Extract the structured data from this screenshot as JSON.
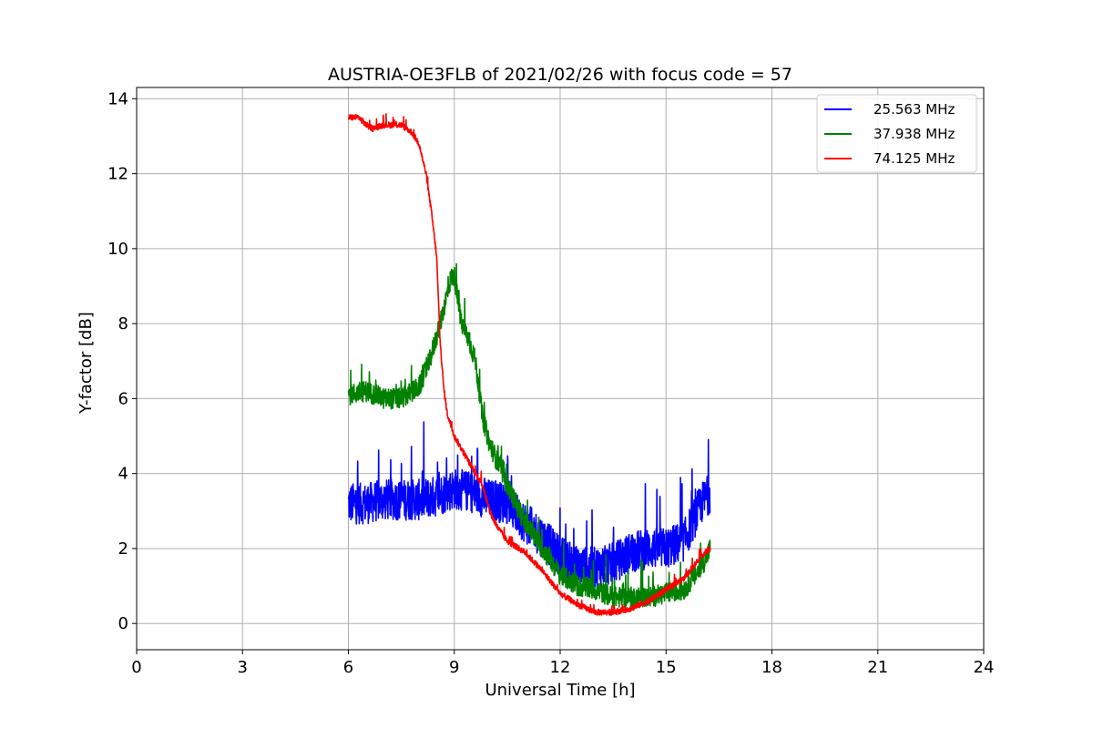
{
  "chart_data": {
    "type": "line",
    "title": "AUSTRIA-OE3FLB of 2021/02/26 with focus code = 57",
    "xlabel": "Universal Time [h]",
    "ylabel": "Y-factor [dB]",
    "xlim": [
      0,
      24
    ],
    "ylim": [
      -0.7,
      14.3
    ],
    "xticks": [
      0,
      3,
      6,
      9,
      12,
      15,
      18,
      21,
      24
    ],
    "yticks": [
      0,
      2,
      4,
      6,
      8,
      10,
      12,
      14
    ],
    "grid": true,
    "legend_position": "top-right",
    "series": [
      {
        "name": "25.563 MHz",
        "color": "#0000ff",
        "x": [
          6.0,
          6.5,
          7.0,
          7.5,
          8.0,
          8.5,
          9.0,
          9.5,
          10.0,
          10.5,
          11.0,
          11.5,
          12.0,
          12.5,
          13.0,
          13.5,
          14.0,
          14.5,
          15.0,
          15.5,
          16.0,
          16.25
        ],
        "y": [
          3.2,
          3.2,
          3.3,
          3.3,
          3.3,
          3.4,
          3.6,
          3.5,
          3.3,
          3.2,
          2.7,
          2.3,
          1.8,
          1.5,
          1.5,
          1.6,
          1.9,
          2.0,
          2.0,
          2.2,
          3.2,
          3.5
        ],
        "noise": 0.55
      },
      {
        "name": "37.938 MHz",
        "color": "#008000",
        "x": [
          6.0,
          6.5,
          7.0,
          7.5,
          8.0,
          8.3,
          8.6,
          8.9,
          9.0,
          9.2,
          9.4,
          9.6,
          9.8,
          10.0,
          10.5,
          11.0,
          11.5,
          12.0,
          12.5,
          13.0,
          13.5,
          14.0,
          14.5,
          15.0,
          15.5,
          16.0,
          16.25
        ],
        "y": [
          6.1,
          6.2,
          6.0,
          6.0,
          6.3,
          7.0,
          8.0,
          9.2,
          9.3,
          8.0,
          7.6,
          7.0,
          5.5,
          4.8,
          3.7,
          2.7,
          2.0,
          1.3,
          1.0,
          0.9,
          0.7,
          0.7,
          0.7,
          0.8,
          0.9,
          1.5,
          2.0
        ],
        "noise": 0.28
      },
      {
        "name": "74.125 MHz",
        "color": "#ff0000",
        "x": [
          6.0,
          6.3,
          6.5,
          6.7,
          7.0,
          7.5,
          7.8,
          8.0,
          8.2,
          8.35,
          8.5,
          8.6,
          8.7,
          8.8,
          9.0,
          9.3,
          9.6,
          9.8,
          10.0,
          10.2,
          10.5,
          11.0,
          11.5,
          12.0,
          12.5,
          13.0,
          13.5,
          14.0,
          14.5,
          15.0,
          15.5,
          16.0,
          16.25
        ],
        "y": [
          13.5,
          13.5,
          13.3,
          13.2,
          13.3,
          13.3,
          13.1,
          12.8,
          12.0,
          11.0,
          9.8,
          7.5,
          6.3,
          5.6,
          5.0,
          4.5,
          4.0,
          3.7,
          3.0,
          2.6,
          2.2,
          1.9,
          1.4,
          0.8,
          0.5,
          0.3,
          0.3,
          0.4,
          0.6,
          0.9,
          1.2,
          1.8,
          2.0
        ],
        "noise": 0.08
      }
    ]
  }
}
